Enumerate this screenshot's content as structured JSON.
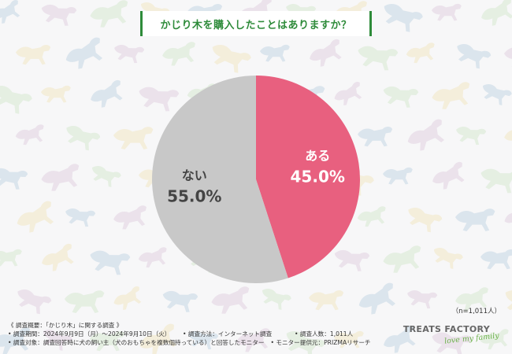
{
  "chart_data": {
    "type": "pie",
    "title": "かじり木を購入したことはありますか？",
    "slices": [
      {
        "label": "ある",
        "value": 45.0,
        "value_label": "45.0%",
        "color": "#e8607f"
      },
      {
        "label": "ない",
        "value": 55.0,
        "value_label": "55.0%",
        "color": "#c8c8c8"
      }
    ],
    "start_angle_deg": 0,
    "direction": "clockwise",
    "sample_size": "（n=1,011人）"
  },
  "colors": {
    "accent": "#2e8b3a",
    "background": "#f7f7f8",
    "pattern": [
      "#b8cfe0",
      "#dcc8dc",
      "#cfe4c8",
      "#f0e2b8"
    ]
  },
  "footer": {
    "heading": "《 調査概要：「かじり木」に関する調査 》",
    "period": "• 調査期間：2024年9月9日（月）～2024年9月10日（火）",
    "method": "• 調査方法：インターネット調査",
    "count": "• 調査人数：1,011人",
    "target": "• 調査対象：調査回答時に犬の飼い主（犬のおもちゃを複数個持っている）と回答したモニター",
    "provider": "• モニター提供元：PRIZMAリサーチ"
  },
  "logo": {
    "name": "TREATS FACTORY",
    "tagline": "love my family"
  }
}
